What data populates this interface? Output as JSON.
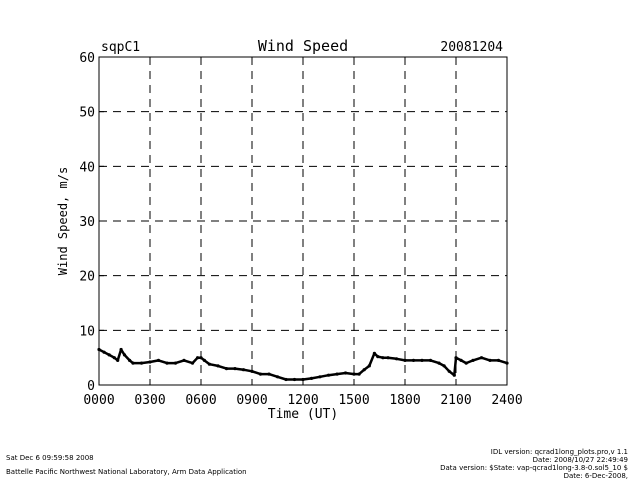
{
  "header": {
    "site": "sqpC1",
    "date": "20081204"
  },
  "chart_data": {
    "type": "line",
    "title": "Wind Speed",
    "xlabel": "Time (UT)",
    "ylabel": "Wind Speed, m/s",
    "xlim": [
      0,
      24
    ],
    "ylim": [
      0,
      60
    ],
    "x_ticks": [
      0,
      3,
      6,
      9,
      12,
      15,
      18,
      21,
      24
    ],
    "x_tick_labels": [
      "0000",
      "0300",
      "0600",
      "0900",
      "1200",
      "1500",
      "1800",
      "2100",
      "2400"
    ],
    "y_ticks": [
      0,
      10,
      20,
      30,
      40,
      50,
      60
    ],
    "y_tick_labels": [
      "0",
      "10",
      "20",
      "30",
      "40",
      "50",
      "60"
    ],
    "grid": "dashed",
    "series": [
      {
        "name": "Wind Speed",
        "x": [
          0,
          0.3,
          0.6,
          0.9,
          1.1,
          1.3,
          1.5,
          1.8,
          2.0,
          2.5,
          3.0,
          3.5,
          4.0,
          4.5,
          5.0,
          5.5,
          5.8,
          6.0,
          6.2,
          6.5,
          7.0,
          7.5,
          8.0,
          8.5,
          9.0,
          9.5,
          10.0,
          10.5,
          11.0,
          11.5,
          12.0,
          12.5,
          13.0,
          13.5,
          14.0,
          14.5,
          15.0,
          15.3,
          15.6,
          15.9,
          16.2,
          16.4,
          16.7,
          17.0,
          17.5,
          18.0,
          18.5,
          19.0,
          19.5,
          20.0,
          20.3,
          20.6,
          20.9,
          21.0,
          21.3,
          21.6,
          22.0,
          22.5,
          23.0,
          23.5,
          24.0
        ],
        "y": [
          6.5,
          6.0,
          5.5,
          5.0,
          4.5,
          6.5,
          5.5,
          4.5,
          4.0,
          4.0,
          4.2,
          4.5,
          4.0,
          4.0,
          4.5,
          4.0,
          5.0,
          5.0,
          4.5,
          3.8,
          3.5,
          3.0,
          3.0,
          2.8,
          2.5,
          2.0,
          2.0,
          1.5,
          1.0,
          1.0,
          1.0,
          1.2,
          1.5,
          1.8,
          2.0,
          2.2,
          2.0,
          2.0,
          2.8,
          3.5,
          5.8,
          5.2,
          5.0,
          5.0,
          4.8,
          4.5,
          4.5,
          4.5,
          4.5,
          4.0,
          3.5,
          2.5,
          1.8,
          5.0,
          4.5,
          4.0,
          4.5,
          5.0,
          4.5,
          4.5,
          4.0
        ]
      }
    ]
  },
  "footer": {
    "timestamp": "Sat Dec  6 09:59:58 2008",
    "organization": "Battelle Pacific Northwest National Laboratory, Arm Data Application",
    "idl_version": "IDL version: qcrad1long_plots.pro,v 1.1",
    "script_date": "Date: 2008/10/27 22:49:49",
    "data_version": "Data version: $State: vap-qcrad1long-3.8-0.sol5_10 $",
    "data_date": "Date: 6-Dec-2008,"
  }
}
